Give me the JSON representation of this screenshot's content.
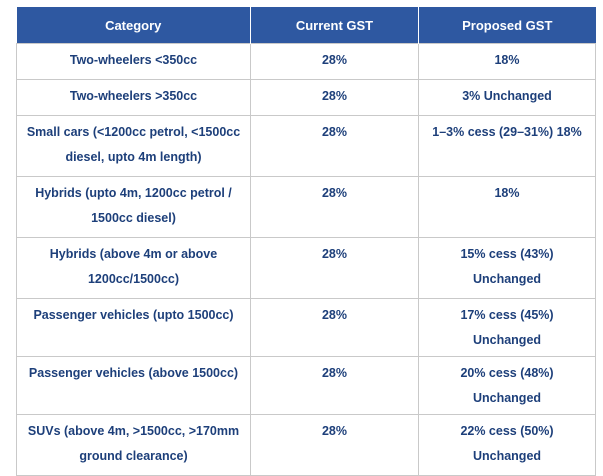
{
  "table": {
    "headers": [
      "Category",
      "Current GST",
      "Proposed GST"
    ],
    "rows": [
      {
        "category": "Two-wheelers <350cc",
        "current": "28%",
        "proposed": "18%"
      },
      {
        "category": "Two-wheelers >350cc",
        "current": "28%",
        "proposed": "3% Unchanged"
      },
      {
        "category": "Small cars (<1200cc petrol, <1500cc diesel, upto 4m length)",
        "current": "28%",
        "proposed": "1–3% cess (29–31%) 18%"
      },
      {
        "category": "Hybrids (upto 4m, 1200cc petrol / 1500cc diesel)",
        "current": "28%",
        "proposed": "18%"
      },
      {
        "category": "Hybrids (above 4m or above 1200cc/1500cc)",
        "current": "28%",
        "proposed": "15% cess (43%) Unchanged"
      },
      {
        "category": "Passenger vehicles (upto 1500cc)",
        "current": "28%",
        "proposed": "17% cess (45%) Unchanged"
      },
      {
        "category": "Passenger vehicles (above 1500cc)",
        "current": "28%",
        "proposed": "20% cess (48%) Unchanged"
      },
      {
        "category": "SUVs (above 4m, >1500cc, >170mm ground clearance)",
        "current": "28%",
        "proposed": "22% cess (50%) Unchanged"
      }
    ]
  }
}
